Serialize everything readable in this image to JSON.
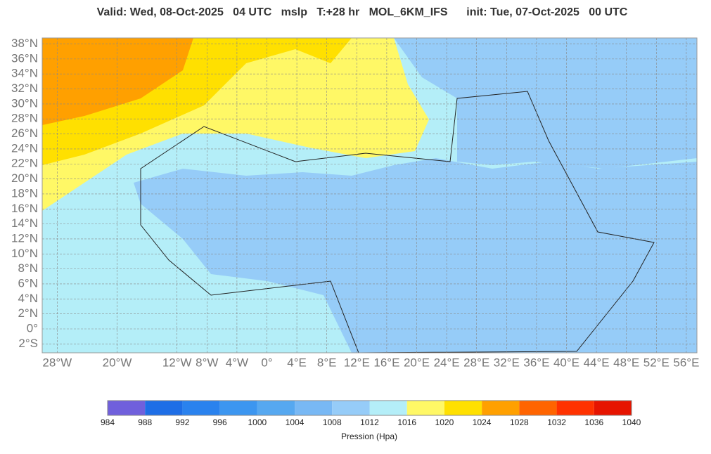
{
  "header": {
    "title": "Valid: Wed, 08-Oct-2025   04 UTC   mslp   T:+28 hr   MOL_6KM_IFS      init: Tue, 07-Oct-2025   00 UTC"
  },
  "map": {
    "lat_labels": [
      {
        "value": 38,
        "label": "38°N"
      },
      {
        "value": 36,
        "label": "36°N"
      },
      {
        "value": 34,
        "label": "34°N"
      },
      {
        "value": 32,
        "label": "32°N"
      },
      {
        "value": 30,
        "label": "30°N"
      },
      {
        "value": 28,
        "label": "28°N"
      },
      {
        "value": 26,
        "label": "26°N"
      },
      {
        "value": 24,
        "label": "24°N"
      },
      {
        "value": 22,
        "label": "22°N"
      },
      {
        "value": 20,
        "label": "20°N"
      },
      {
        "value": 18,
        "label": "18°N"
      },
      {
        "value": 16,
        "label": "16°N"
      },
      {
        "value": 14,
        "label": "14°N"
      },
      {
        "value": 12,
        "label": "12°N"
      },
      {
        "value": 10,
        "label": "10°N"
      },
      {
        "value": 8,
        "label": "8°N"
      },
      {
        "value": 6,
        "label": "6°N"
      },
      {
        "value": 4,
        "label": "4°N"
      },
      {
        "value": 2,
        "label": "2°N"
      },
      {
        "value": 0,
        "label": "0°"
      },
      {
        "value": -2,
        "label": "2°S"
      }
    ],
    "lon_labels": [
      {
        "value": -28,
        "label": "28°W"
      },
      {
        "value": -20,
        "label": "20°W"
      },
      {
        "value": -12,
        "label": "12°W"
      },
      {
        "value": -8,
        "label": "8°W"
      },
      {
        "value": -4,
        "label": "4°W"
      },
      {
        "value": 0,
        "label": "0°"
      },
      {
        "value": 4,
        "label": "4°E"
      },
      {
        "value": 8,
        "label": "8°E"
      },
      {
        "value": 12,
        "label": "12°E"
      },
      {
        "value": 16,
        "label": "16°E"
      },
      {
        "value": 20,
        "label": "20°E"
      },
      {
        "value": 24,
        "label": "24°E"
      },
      {
        "value": 28,
        "label": "28°E"
      },
      {
        "value": 32,
        "label": "32°E"
      },
      {
        "value": 36,
        "label": "36°E"
      },
      {
        "value": 40,
        "label": "40°E"
      },
      {
        "value": 44,
        "label": "44°E"
      },
      {
        "value": 48,
        "label": "48°E"
      },
      {
        "value": 52,
        "label": "52°E"
      },
      {
        "value": 56,
        "label": "56°E"
      }
    ]
  },
  "colorbar": {
    "ticks": [
      984,
      988,
      992,
      996,
      1000,
      1004,
      1008,
      1012,
      1016,
      1020,
      1024,
      1028,
      1032,
      1036,
      1040
    ],
    "colors": [
      "#7060dc",
      "#1e6ee6",
      "#2a82ee",
      "#3c96f0",
      "#56a8f0",
      "#78b8f4",
      "#96ccf8",
      "#b4eef8",
      "#fff866",
      "#ffe000",
      "#ffa000",
      "#ff6400",
      "#ff3200",
      "#e61400"
    ],
    "label": "Pression (Hpa)"
  }
}
